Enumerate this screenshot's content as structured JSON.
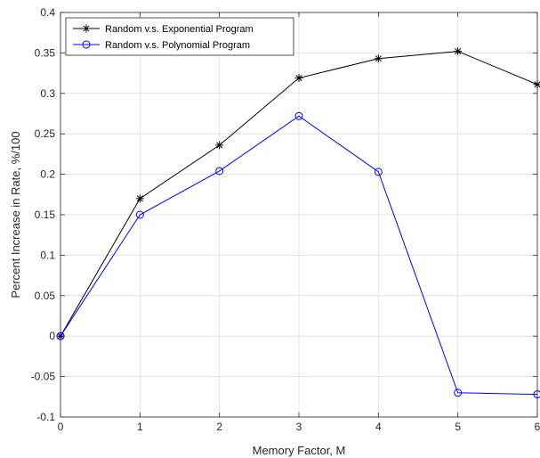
{
  "chart_data": {
    "type": "line",
    "xlabel": "Memory Factor, M",
    "ylabel": "Percent Increase in Rate, %/100",
    "xlim": [
      0,
      6
    ],
    "ylim": [
      -0.1,
      0.4
    ],
    "xticks": [
      "0",
      "1",
      "2",
      "3",
      "4",
      "5",
      "6"
    ],
    "yticks": [
      "-0.1",
      "-0.05",
      "0",
      "0.05",
      "0.1",
      "0.15",
      "0.2",
      "0.25",
      "0.3",
      "0.35",
      "0.4"
    ],
    "grid": true,
    "legend_position": "top-left",
    "x": [
      0,
      1,
      2,
      3,
      4,
      5,
      6
    ],
    "series": [
      {
        "name": "Random v.s. Exponential Program",
        "values": [
          0,
          0.17,
          0.236,
          0.319,
          0.343,
          0.352,
          0.311
        ],
        "color": "#000000",
        "marker": "asterisk"
      },
      {
        "name": "Random v.s. Polynomial Program",
        "values": [
          0,
          0.15,
          0.204,
          0.272,
          0.203,
          -0.07,
          -0.072
        ],
        "color": "#0000ff",
        "marker": "circle"
      }
    ]
  }
}
